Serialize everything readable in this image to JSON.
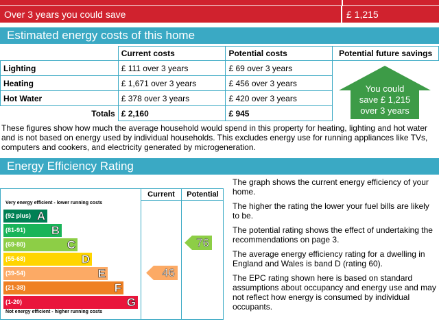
{
  "savings": {
    "label": "Over 3 years you could save",
    "value": "£ 1,215"
  },
  "costs_section": {
    "title": "Estimated energy costs of this home",
    "headers": [
      "Current costs",
      "Potential costs",
      "Potential future savings"
    ],
    "rows": [
      {
        "label": "Lighting",
        "current": "£ 111 over 3 years",
        "potential": "£ 69 over 3 years"
      },
      {
        "label": "Heating",
        "current": "£ 1,671 over 3 years",
        "potential": "£ 456 over 3 years"
      },
      {
        "label": "Hot Water",
        "current": "£ 378 over 3 years",
        "potential": "£ 420 over 3 years"
      }
    ],
    "totals": {
      "label": "Totals",
      "current": "£ 2,160",
      "potential": "£ 945"
    },
    "house": {
      "line1": "You could",
      "line2": "save £ 1,215",
      "line3": "over 3 years",
      "color": "#3d9b47"
    }
  },
  "paragraph": "These figures show how much the average household would spend in this property for heating, lighting and hot water and is not based on energy used by individual households. This excludes energy use for running appliances like TVs, computers and cookers, and electricity generated by microgeneration.",
  "rating_section": {
    "title": "Energy Efficiency Rating",
    "col_current": "Current",
    "col_potential": "Potential",
    "top_caption": "Very energy efficient - lower running costs",
    "bottom_caption": "Not energy efficient - higher running costs",
    "bands": [
      {
        "range": "(92 plus)",
        "letter": "A",
        "color": "#008054"
      },
      {
        "range": "(81-91)",
        "letter": "B",
        "color": "#19b459"
      },
      {
        "range": "(69-80)",
        "letter": "C",
        "color": "#8dce46"
      },
      {
        "range": "(55-68)",
        "letter": "D",
        "color": "#ffd500"
      },
      {
        "range": "(39-54)",
        "letter": "E",
        "color": "#fcaa65"
      },
      {
        "range": "(21-38)",
        "letter": "F",
        "color": "#ef8023"
      },
      {
        "range": "(1-20)",
        "letter": "G",
        "color": "#e9153b"
      }
    ],
    "current_rating": "46",
    "current_color": "#fcaa65",
    "potential_rating": "76",
    "potential_color": "#8dce46",
    "notes": [
      "The graph shows the current energy efficiency of your home.",
      "The higher the rating the lower your fuel bills are likely to be.",
      "The potential rating shows the effect of undertaking the recommendations on page 3.",
      "The average energy efficiency rating for a dwelling in England and Wales is band D (rating 60).",
      "The EPC rating shown here is based on standard assumptions about occupancy and energy use and may not reflect how energy is consumed by individual occupants."
    ]
  }
}
